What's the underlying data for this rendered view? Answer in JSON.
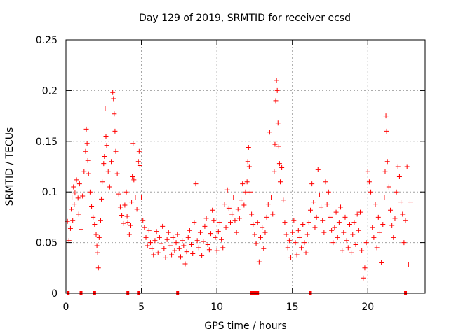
{
  "chart_data": {
    "type": "scatter",
    "title": "Day 129 of 2019, SRMTID for receiver ecsd",
    "xlabel": "GPS time / hours",
    "ylabel": "SRMTID / TECUs",
    "xlim": [
      0,
      23.8
    ],
    "ylim": [
      0,
      0.25
    ],
    "x_ticks": [
      0,
      5,
      10,
      15,
      20
    ],
    "y_ticks": [
      0,
      0.05,
      0.1,
      0.15,
      0.2,
      0.25
    ],
    "x_tick_labels": [
      "0",
      "5",
      "10",
      "15",
      "20"
    ],
    "y_tick_labels": [
      "0",
      "0.05",
      "0.1",
      "0.15",
      "0.2",
      "0.25"
    ],
    "grid": true,
    "marker": "+",
    "series_color": "#ff0000",
    "series": [
      {
        "name": "SRMTID",
        "points": [
          [
            0.1,
            0.071
          ],
          [
            0.2,
            0.052
          ],
          [
            0.3,
            0.064
          ],
          [
            0.35,
            0.083
          ],
          [
            0.4,
            0.095
          ],
          [
            0.45,
            0.072
          ],
          [
            0.5,
            0.105
          ],
          [
            0.55,
            0.088
          ],
          [
            0.6,
            0.099
          ],
          [
            0.7,
            0.112
          ],
          [
            0.8,
            0.094
          ],
          [
            0.85,
            0.078
          ],
          [
            0.9,
            0.108
          ],
          [
            1.0,
            0.063
          ],
          [
            1.1,
            0.096
          ],
          [
            1.2,
            0.12
          ],
          [
            1.3,
            0.14
          ],
          [
            1.35,
            0.162
          ],
          [
            1.4,
            0.148
          ],
          [
            1.45,
            0.131
          ],
          [
            1.5,
            0.118
          ],
          [
            1.6,
            0.1
          ],
          [
            1.7,
            0.086
          ],
          [
            1.8,
            0.075
          ],
          [
            1.9,
            0.068
          ],
          [
            2.0,
            0.058
          ],
          [
            2.05,
            0.047
          ],
          [
            2.1,
            0.04
          ],
          [
            2.15,
            0.025
          ],
          [
            2.2,
            0.055
          ],
          [
            2.3,
            0.072
          ],
          [
            2.35,
            0.093
          ],
          [
            2.4,
            0.11
          ],
          [
            2.5,
            0.128
          ],
          [
            2.55,
            0.135
          ],
          [
            2.6,
            0.182
          ],
          [
            2.65,
            0.155
          ],
          [
            2.7,
            0.146
          ],
          [
            2.8,
            0.12
          ],
          [
            2.9,
            0.105
          ],
          [
            3.0,
            0.13
          ],
          [
            3.1,
            0.198
          ],
          [
            3.15,
            0.192
          ],
          [
            3.2,
            0.177
          ],
          [
            3.25,
            0.16
          ],
          [
            3.3,
            0.14
          ],
          [
            3.4,
            0.118
          ],
          [
            3.5,
            0.098
          ],
          [
            3.6,
            0.085
          ],
          [
            3.7,
            0.077
          ],
          [
            3.8,
            0.069
          ],
          [
            3.9,
            0.087
          ],
          [
            4.0,
            0.1
          ],
          [
            4.05,
            0.076
          ],
          [
            4.1,
            0.07
          ],
          [
            4.2,
            0.058
          ],
          [
            4.3,
            0.067
          ],
          [
            4.35,
            0.09
          ],
          [
            4.4,
            0.115
          ],
          [
            4.45,
            0.148
          ],
          [
            4.5,
            0.112
          ],
          [
            4.6,
            0.095
          ],
          [
            4.7,
            0.083
          ],
          [
            4.8,
            0.13
          ],
          [
            4.85,
            0.14
          ],
          [
            4.9,
            0.126
          ],
          [
            5.0,
            0.095
          ],
          [
            5.1,
            0.072
          ],
          [
            5.2,
            0.065
          ],
          [
            5.3,
            0.055
          ],
          [
            5.4,
            0.047
          ],
          [
            5.5,
            0.062
          ],
          [
            5.6,
            0.05
          ],
          [
            5.7,
            0.044
          ],
          [
            5.8,
            0.038
          ],
          [
            5.9,
            0.052
          ],
          [
            6.0,
            0.061
          ],
          [
            6.1,
            0.04
          ],
          [
            6.2,
            0.055
          ],
          [
            6.3,
            0.049
          ],
          [
            6.4,
            0.066
          ],
          [
            6.5,
            0.044
          ],
          [
            6.6,
            0.035
          ],
          [
            6.7,
            0.053
          ],
          [
            6.8,
            0.06
          ],
          [
            6.9,
            0.047
          ],
          [
            7.0,
            0.038
          ],
          [
            7.1,
            0.055
          ],
          [
            7.2,
            0.042
          ],
          [
            7.3,
            0.05
          ],
          [
            7.4,
            0.058
          ],
          [
            7.5,
            0.044
          ],
          [
            7.6,
            0.036
          ],
          [
            7.7,
            0.052
          ],
          [
            7.8,
            0.047
          ],
          [
            7.9,
            0.029
          ],
          [
            8.0,
            0.041
          ],
          [
            8.1,
            0.055
          ],
          [
            8.2,
            0.062
          ],
          [
            8.3,
            0.048
          ],
          [
            8.4,
            0.039
          ],
          [
            8.5,
            0.07
          ],
          [
            8.6,
            0.108
          ],
          [
            8.7,
            0.052
          ],
          [
            8.8,
            0.045
          ],
          [
            8.9,
            0.06
          ],
          [
            9.0,
            0.037
          ],
          [
            9.1,
            0.051
          ],
          [
            9.2,
            0.066
          ],
          [
            9.3,
            0.074
          ],
          [
            9.4,
            0.048
          ],
          [
            9.5,
            0.043
          ],
          [
            9.6,
            0.059
          ],
          [
            9.7,
            0.082
          ],
          [
            9.8,
            0.072
          ],
          [
            9.9,
            0.055
          ],
          [
            10.0,
            0.042
          ],
          [
            10.1,
            0.061
          ],
          [
            10.2,
            0.07
          ],
          [
            10.3,
            0.053
          ],
          [
            10.4,
            0.045
          ],
          [
            10.5,
            0.088
          ],
          [
            10.6,
            0.065
          ],
          [
            10.7,
            0.102
          ],
          [
            10.8,
            0.084
          ],
          [
            10.9,
            0.07
          ],
          [
            11.0,
            0.078
          ],
          [
            11.1,
            0.095
          ],
          [
            11.2,
            0.072
          ],
          [
            11.3,
            0.06
          ],
          [
            11.4,
            0.083
          ],
          [
            11.5,
            0.074
          ],
          [
            11.6,
            0.092
          ],
          [
            11.7,
            0.108
          ],
          [
            11.8,
            0.087
          ],
          [
            11.9,
            0.1
          ],
          [
            12.0,
            0.11
          ],
          [
            12.05,
            0.13
          ],
          [
            12.1,
            0.144
          ],
          [
            12.15,
            0.125
          ],
          [
            12.2,
            0.1
          ],
          [
            12.3,
            0.078
          ],
          [
            12.4,
            0.068
          ],
          [
            12.5,
            0.058
          ],
          [
            12.6,
            0.049
          ],
          [
            12.7,
            0.07
          ],
          [
            12.8,
            0.031
          ],
          [
            12.9,
            0.055
          ],
          [
            13.0,
            0.065
          ],
          [
            13.1,
            0.044
          ],
          [
            13.2,
            0.06
          ],
          [
            13.3,
            0.075
          ],
          [
            13.4,
            0.088
          ],
          [
            13.5,
            0.159
          ],
          [
            13.6,
            0.095
          ],
          [
            13.7,
            0.078
          ],
          [
            13.8,
            0.12
          ],
          [
            13.85,
            0.147
          ],
          [
            13.9,
            0.19
          ],
          [
            13.95,
            0.21
          ],
          [
            14.0,
            0.2
          ],
          [
            14.05,
            0.168
          ],
          [
            14.1,
            0.145
          ],
          [
            14.15,
            0.128
          ],
          [
            14.2,
            0.11
          ],
          [
            14.3,
            0.124
          ],
          [
            14.4,
            0.092
          ],
          [
            14.5,
            0.07
          ],
          [
            14.6,
            0.058
          ],
          [
            14.7,
            0.045
          ],
          [
            14.8,
            0.052
          ],
          [
            14.9,
            0.035
          ],
          [
            15.0,
            0.06
          ],
          [
            15.1,
            0.072
          ],
          [
            15.2,
            0.05
          ],
          [
            15.3,
            0.038
          ],
          [
            15.4,
            0.062
          ],
          [
            15.5,
            0.055
          ],
          [
            15.6,
            0.045
          ],
          [
            15.7,
            0.068
          ],
          [
            15.8,
            0.05
          ],
          [
            15.9,
            0.04
          ],
          [
            16.0,
            0.058
          ],
          [
            16.1,
            0.07
          ],
          [
            16.2,
            0.082
          ],
          [
            16.3,
            0.108
          ],
          [
            16.4,
            0.09
          ],
          [
            16.5,
            0.065
          ],
          [
            16.6,
            0.075
          ],
          [
            16.7,
            0.122
          ],
          [
            16.8,
            0.097
          ],
          [
            16.9,
            0.085
          ],
          [
            17.0,
            0.072
          ],
          [
            17.1,
            0.06
          ],
          [
            17.2,
            0.11
          ],
          [
            17.3,
            0.088
          ],
          [
            17.4,
            0.1
          ],
          [
            17.5,
            0.075
          ],
          [
            17.6,
            0.062
          ],
          [
            17.7,
            0.05
          ],
          [
            17.8,
            0.065
          ],
          [
            17.9,
            0.08
          ],
          [
            18.0,
            0.055
          ],
          [
            18.1,
            0.07
          ],
          [
            18.2,
            0.085
          ],
          [
            18.3,
            0.042
          ],
          [
            18.4,
            0.06
          ],
          [
            18.5,
            0.075
          ],
          [
            18.6,
            0.052
          ],
          [
            18.7,
            0.045
          ],
          [
            18.8,
            0.068
          ],
          [
            18.9,
            0.04
          ],
          [
            19.0,
            0.058
          ],
          [
            19.1,
            0.07
          ],
          [
            19.2,
            0.048
          ],
          [
            19.3,
            0.078
          ],
          [
            19.4,
            0.062
          ],
          [
            19.5,
            0.08
          ],
          [
            19.6,
            0.042
          ],
          [
            19.7,
            0.015
          ],
          [
            19.8,
            0.025
          ],
          [
            19.9,
            0.05
          ],
          [
            20.0,
            0.12
          ],
          [
            20.1,
            0.11
          ],
          [
            20.2,
            0.1
          ],
          [
            20.3,
            0.065
          ],
          [
            20.4,
            0.055
          ],
          [
            20.5,
            0.088
          ],
          [
            20.6,
            0.045
          ],
          [
            20.7,
            0.075
          ],
          [
            20.8,
            0.06
          ],
          [
            20.9,
            0.03
          ],
          [
            21.0,
            0.068
          ],
          [
            21.1,
            0.095
          ],
          [
            21.15,
            0.12
          ],
          [
            21.2,
            0.175
          ],
          [
            21.25,
            0.16
          ],
          [
            21.3,
            0.13
          ],
          [
            21.4,
            0.105
          ],
          [
            21.5,
            0.082
          ],
          [
            21.6,
            0.067
          ],
          [
            21.7,
            0.055
          ],
          [
            21.8,
            0.074
          ],
          [
            21.9,
            0.1
          ],
          [
            22.0,
            0.125
          ],
          [
            22.1,
            0.115
          ],
          [
            22.2,
            0.09
          ],
          [
            22.3,
            0.078
          ],
          [
            22.4,
            0.05
          ],
          [
            22.5,
            0.072
          ],
          [
            22.6,
            0.125
          ],
          [
            22.7,
            0.028
          ],
          [
            22.8,
            0.09
          ]
        ]
      }
    ],
    "bottom_markers": [
      0.15,
      1.0,
      1.9,
      4.1,
      4.8,
      7.4,
      12.3,
      12.4,
      12.5,
      12.6,
      12.7,
      16.2,
      22.5
    ]
  }
}
